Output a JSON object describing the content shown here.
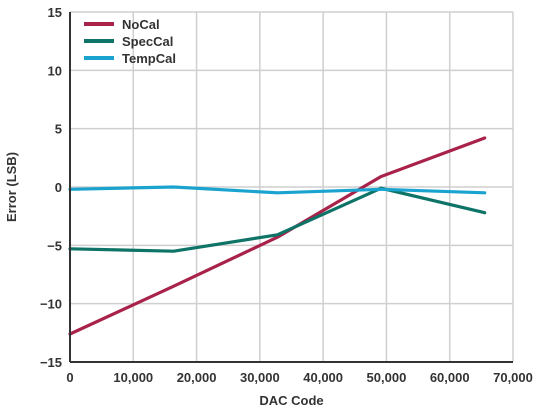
{
  "chart_data": {
    "type": "line",
    "title": "",
    "xlabel": "DAC Code",
    "ylabel": "Error (LSB)",
    "xlim": [
      0,
      70000
    ],
    "ylim": [
      -15,
      15
    ],
    "xticks": [
      0,
      10000,
      20000,
      30000,
      40000,
      50000,
      60000,
      70000
    ],
    "xtick_labels": [
      "0",
      "10,000",
      "20,000",
      "30,000",
      "40,000",
      "50,000",
      "60,000",
      "70,000"
    ],
    "yticks": [
      -15,
      -10,
      -5,
      0,
      5,
      10,
      15
    ],
    "ytick_labels": [
      "−15",
      "−10",
      "−5",
      "0",
      "5",
      "10",
      "15"
    ],
    "grid": true,
    "legend_position": "top-left",
    "series": [
      {
        "name": "NoCal",
        "color": "#a8224a",
        "x": [
          0,
          16384,
          32768,
          49152,
          65535
        ],
        "y": [
          -12.6,
          -8.5,
          -4.3,
          0.9,
          4.2
        ]
      },
      {
        "name": "SpecCal",
        "color": "#0f7468",
        "x": [
          0,
          16384,
          32768,
          49152,
          65535
        ],
        "y": [
          -5.3,
          -5.5,
          -4.1,
          -0.1,
          -2.2
        ]
      },
      {
        "name": "TempCal",
        "color": "#1ba3d0",
        "x": [
          0,
          16384,
          32768,
          49152,
          65535
        ],
        "y": [
          -0.2,
          0.0,
          -0.5,
          -0.2,
          -0.5
        ]
      }
    ]
  }
}
